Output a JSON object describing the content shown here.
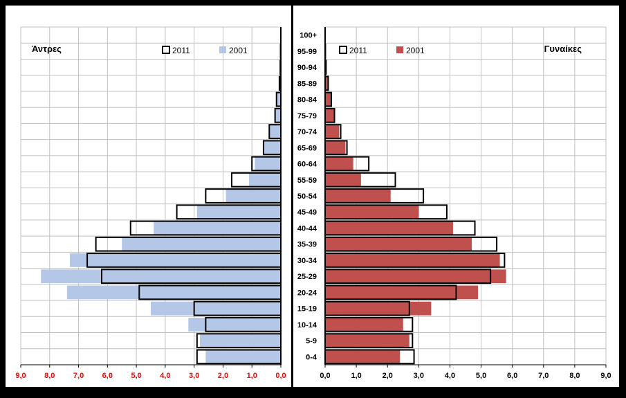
{
  "chart_data": {
    "type": "bar",
    "orientation": "horizontal",
    "subtype": "population-pyramid",
    "categories": [
      "0-4",
      "5-9",
      "10-14",
      "15-19",
      "20-24",
      "25-29",
      "30-34",
      "35-39",
      "40-44",
      "45-49",
      "50-54",
      "55-59",
      "60-64",
      "65-69",
      "70-74",
      "75-79",
      "80-84",
      "85-89",
      "90-94",
      "95-99",
      "100+"
    ],
    "legend": {
      "label_2011": "2011",
      "label_2001": "2001"
    },
    "xlim": [
      0,
      9
    ],
    "ticks": [
      "0,0",
      "1,0",
      "2,0",
      "3,0",
      "4,0",
      "5,0",
      "6,0",
      "7,0",
      "8,0",
      "9,0"
    ],
    "grid": true,
    "panels": [
      {
        "title": "Άντρες",
        "direction": "left",
        "legend_position": "top-right",
        "tick_color": "#ff0000",
        "series": [
          {
            "name": "2001",
            "color": "#b4c7e7",
            "values": [
              2.6,
              2.8,
              3.2,
              4.5,
              7.4,
              8.3,
              7.3,
              5.5,
              4.4,
              2.9,
              1.9,
              1.1,
              0.9,
              0.6,
              0.4,
              0.2,
              0.15,
              0.05,
              0.02,
              0.01,
              0.0
            ]
          },
          {
            "name": "2011",
            "color": "#000000",
            "values": [
              2.9,
              2.9,
              2.6,
              3.0,
              4.9,
              6.2,
              6.7,
              6.4,
              5.2,
              3.6,
              2.6,
              1.7,
              1.0,
              0.6,
              0.4,
              0.2,
              0.15,
              0.05,
              0.02,
              0.01,
              0.0
            ]
          }
        ]
      },
      {
        "title": "Γυναίκες",
        "direction": "right",
        "legend_position": "top-left",
        "tick_color": "#000000",
        "series": [
          {
            "name": "2001",
            "color": "#c0504d",
            "values": [
              2.4,
              2.7,
              2.5,
              3.4,
              4.9,
              5.8,
              5.6,
              4.7,
              4.1,
              3.0,
              2.1,
              1.15,
              0.9,
              0.65,
              0.45,
              0.3,
              0.2,
              0.1,
              0.03,
              0.01,
              0.0
            ]
          },
          {
            "name": "2011",
            "color": "#000000",
            "values": [
              2.85,
              2.8,
              2.8,
              2.7,
              4.2,
              5.3,
              5.75,
              5.5,
              4.8,
              3.9,
              3.15,
              2.25,
              1.4,
              0.7,
              0.5,
              0.3,
              0.2,
              0.1,
              0.03,
              0.01,
              0.0
            ]
          }
        ]
      }
    ]
  }
}
